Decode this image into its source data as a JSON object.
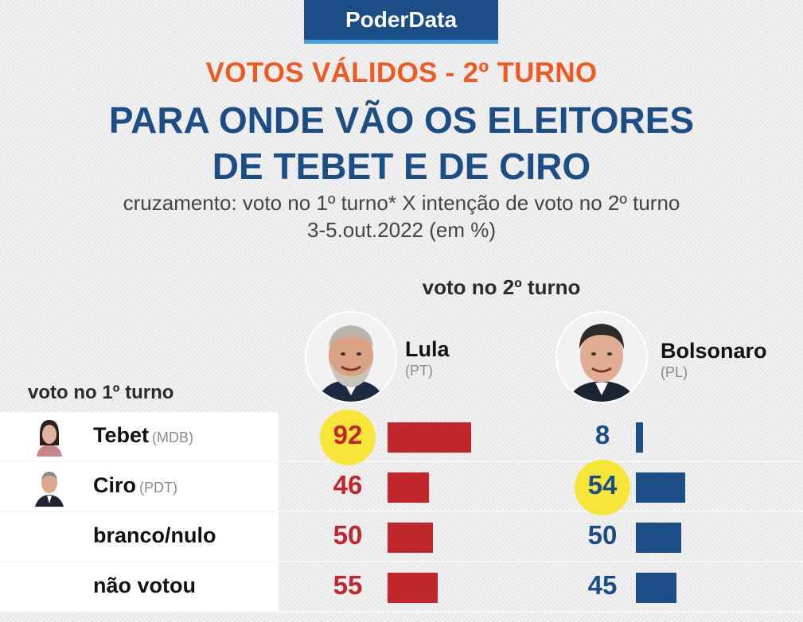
{
  "brand": "PoderData",
  "kicker": "VOTOS VÁLIDOS - 2º TURNO",
  "title_line1": "PARA ONDE VÃO OS ELEITORES",
  "title_line2": "DE TEBET E DE CIRO",
  "subtitle_line1": "cruzamento: voto no 1º turno* X intenção de voto no 2º turno",
  "subtitle_line2": "3-5.out.2022 (em %)",
  "col_group_label": "voto no 2º turno",
  "row_group_label": "voto no 1º turno",
  "colors": {
    "red": "#c1272d",
    "blue": "#1b4d86",
    "orange": "#f05a22",
    "highlight": "#f7e53a"
  },
  "chart_data": {
    "type": "bar",
    "title": "PARA ONDE VÃO OS ELEITORES DE TEBET E DE CIRO",
    "categories": [
      "Tebet",
      "Ciro",
      "branco/nulo",
      "não votou"
    ],
    "series": [
      {
        "name": "Lula",
        "party": "(PT)",
        "color": "#c1272d",
        "values": [
          92,
          46,
          50,
          55
        ]
      },
      {
        "name": "Bolsonaro",
        "party": "(PL)",
        "color": "#1b4d86",
        "values": [
          8,
          54,
          50,
          45
        ]
      }
    ],
    "rows": [
      {
        "label": "Tebet",
        "party": "(MDB)",
        "lula": "92",
        "bolsonaro": "8",
        "highlight": "lula"
      },
      {
        "label": "Ciro",
        "party": "(PDT)",
        "lula": "46",
        "bolsonaro": "54",
        "highlight": "bolsonaro"
      },
      {
        "label": "branco/nulo",
        "party": "",
        "lula": "50",
        "bolsonaro": "50",
        "highlight": ""
      },
      {
        "label": "não votou",
        "party": "",
        "lula": "55",
        "bolsonaro": "45",
        "highlight": ""
      }
    ],
    "ylim": [
      0,
      100
    ]
  }
}
